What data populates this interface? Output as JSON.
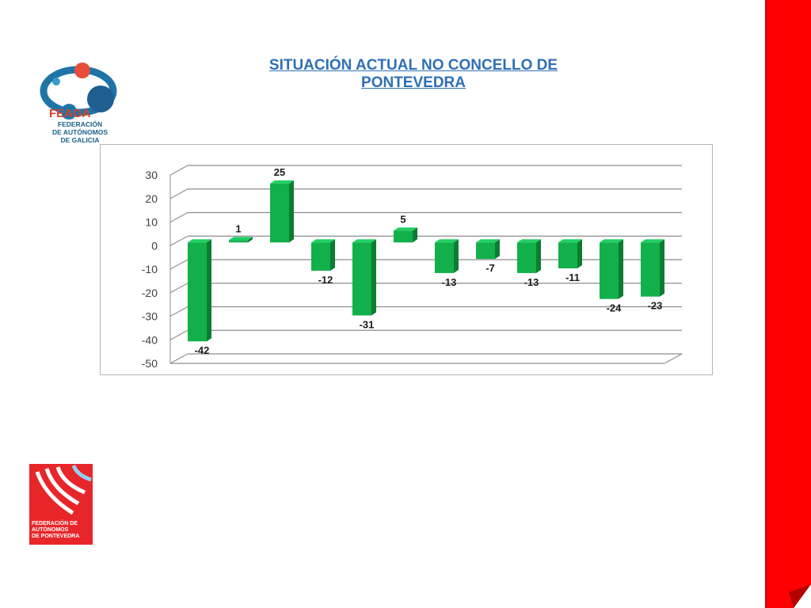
{
  "slide": {
    "title": "SITUACIÓN ACTUAL NO CONCELLO DE PONTEVEDRA"
  },
  "logos": {
    "feaga": {
      "name": "FEAGA",
      "subtitle_lines": [
        "FEDERACIÓN",
        "DE AUTÓNOMOS",
        "DE GALICIA"
      ]
    },
    "pontevedra": {
      "lines": [
        "FEDERACIÓN DE",
        "AUTÓNOMOS",
        "DE PONTEVEDRA"
      ]
    }
  },
  "colors": {
    "title": "#2e6fb5",
    "bar_front": "#12b04a",
    "bar_side": "#0b7d32",
    "bar_top": "#1fd062",
    "sidebar_red": "#ff0000"
  },
  "chart_data": {
    "type": "bar",
    "title": "",
    "xlabel": "",
    "ylabel": "",
    "categories": [
      "",
      "",
      "",
      "",
      "",
      "",
      "",
      "",
      "",
      "",
      "",
      ""
    ],
    "values": [
      -42,
      1,
      25,
      -12,
      -31,
      5,
      -13,
      -7,
      -13,
      -11,
      -24,
      -23
    ],
    "data_labels": [
      "-42",
      "1",
      "25",
      "-12",
      "-31",
      "5",
      "-13",
      "-7",
      "-13",
      "-11",
      "-24",
      "-23"
    ],
    "ylim": [
      -50,
      30
    ],
    "yticks": [
      30,
      20,
      10,
      0,
      -10,
      -20,
      -30,
      -40,
      -50
    ],
    "grid": true,
    "legend": "none",
    "style": "3d"
  }
}
